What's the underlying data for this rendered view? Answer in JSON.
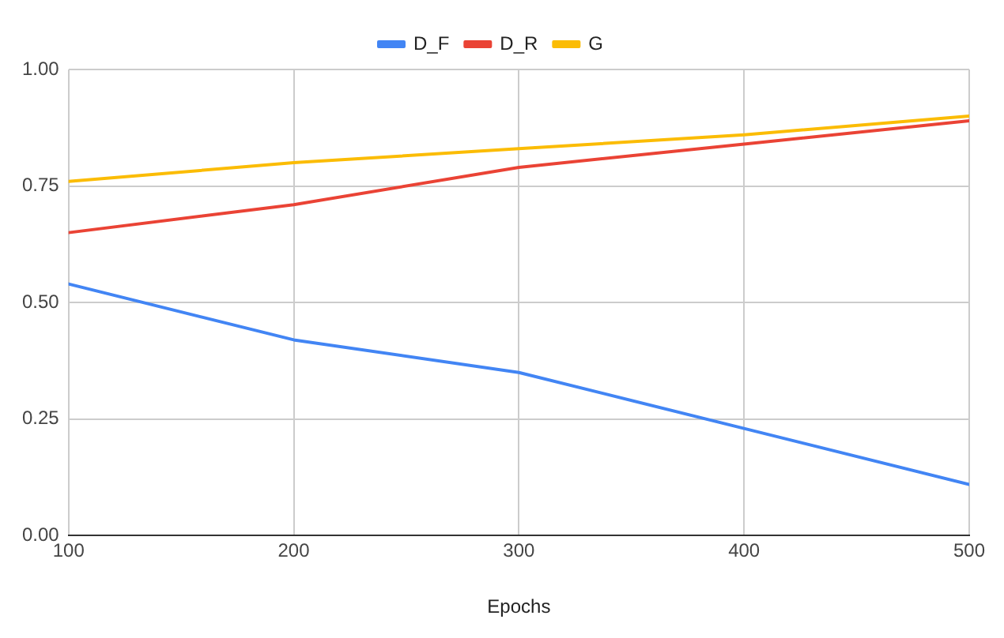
{
  "chart_data": {
    "type": "line",
    "xlabel": "Epochs",
    "x": [
      100,
      200,
      300,
      400,
      500
    ],
    "series": [
      {
        "name": "D_F",
        "color": "#4285f4",
        "values": [
          0.54,
          0.42,
          0.35,
          0.23,
          0.11
        ]
      },
      {
        "name": "D_R",
        "color": "#ea4335",
        "values": [
          0.65,
          0.71,
          0.79,
          0.84,
          0.89
        ]
      },
      {
        "name": "G",
        "color": "#fbbc04",
        "values": [
          0.76,
          0.8,
          0.83,
          0.86,
          0.9
        ]
      }
    ],
    "xlim": [
      100,
      500
    ],
    "xticks": [
      100,
      200,
      300,
      400,
      500
    ],
    "ylim": [
      0,
      1
    ],
    "yticks": [
      {
        "value": 0,
        "label": "0.00"
      },
      {
        "value": 0.25,
        "label": "0.25"
      },
      {
        "value": 0.5,
        "label": "0.50"
      },
      {
        "value": 0.75,
        "label": "0.75"
      },
      {
        "value": 1,
        "label": "1.00"
      }
    ],
    "grid": true,
    "legend": "top",
    "marker": "none",
    "line_style": "solid"
  }
}
